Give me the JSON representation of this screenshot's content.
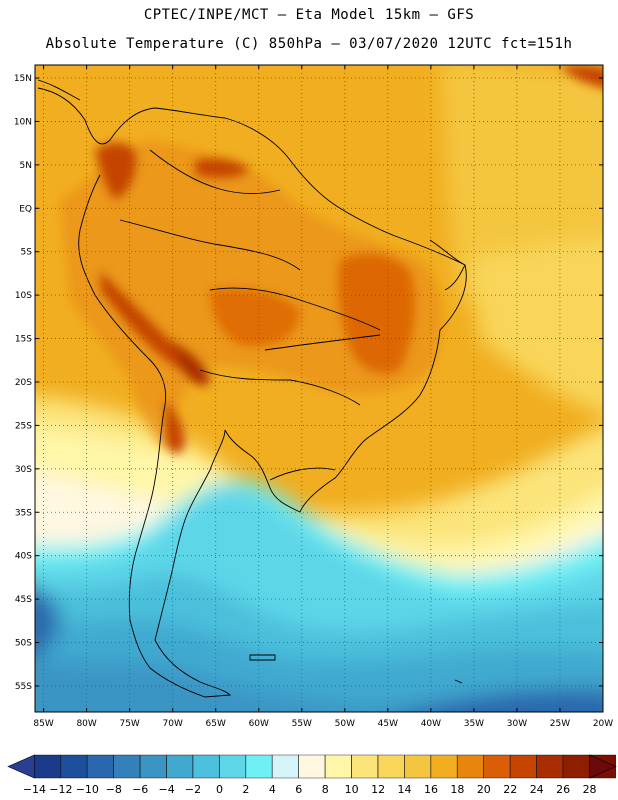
{
  "title": {
    "line1": "CPTEC/INPE/MCT –  Eta Model 15km – GFS",
    "line2": "Absolute Temperature (C) 850hPa – 03/07/2020 12UTC fct=151h"
  },
  "map": {
    "lat_labels": [
      "15N",
      "10N",
      "5N",
      "EQ",
      "5S",
      "10S",
      "15S",
      "20S",
      "25S",
      "30S",
      "35S",
      "40S",
      "45S",
      "50S",
      "55S"
    ],
    "lon_labels": [
      "85W",
      "80W",
      "75W",
      "70W",
      "65W",
      "60W",
      "55W",
      "50W",
      "45W",
      "40W",
      "35W",
      "30W",
      "25W",
      "20W"
    ],
    "lat_range": [
      -58,
      16.5
    ],
    "lon_range": [
      -86,
      -20
    ]
  },
  "colorbar": {
    "labels": [
      "-14",
      "-12",
      "-10",
      "-8",
      "-6",
      "-4",
      "-2",
      "0",
      "2",
      "4",
      "6",
      "8",
      "10",
      "12",
      "14",
      "16",
      "18",
      "20",
      "22",
      "24",
      "26",
      "28"
    ],
    "colors": [
      "#1a3a8a",
      "#1e4f9c",
      "#2a67ad",
      "#3481b9",
      "#3a95c4",
      "#41a9cf",
      "#4cc0dc",
      "#5dd6e8",
      "#6ff0f5",
      "#d4f4fa",
      "#fff7e0",
      "#fff6a8",
      "#fbe47a",
      "#f8d65a",
      "#f4c640",
      "#f1ae20",
      "#e8850d",
      "#da5e06",
      "#c54400",
      "#a92d00",
      "#8f1d00",
      "#7a1000"
    ],
    "under_color": "#2a3f8f",
    "over_color": "#6a0a0a"
  }
}
